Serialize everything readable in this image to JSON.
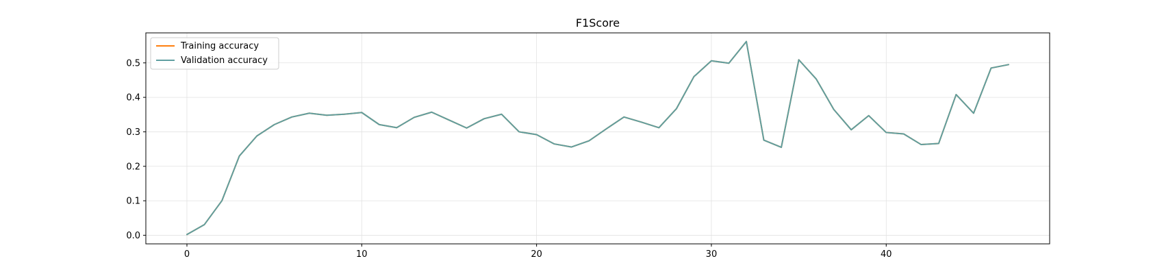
{
  "chart_data": {
    "type": "line",
    "title": "F1Score",
    "xlabel": "",
    "ylabel": "",
    "xlim": [
      -2.35,
      49.35
    ],
    "ylim": [
      -0.025,
      0.587
    ],
    "x_ticks": [
      0,
      10,
      20,
      30,
      40
    ],
    "y_ticks": [
      0.0,
      0.1,
      0.2,
      0.3,
      0.4,
      0.5
    ],
    "y_tick_labels": [
      "0.0",
      "0.1",
      "0.2",
      "0.3",
      "0.4",
      "0.5"
    ],
    "grid": true,
    "legend_placement": "upper-left",
    "x": [
      0,
      1,
      2,
      3,
      4,
      5,
      6,
      7,
      8,
      9,
      10,
      11,
      12,
      13,
      14,
      15,
      16,
      17,
      18,
      19,
      20,
      21,
      22,
      23,
      24,
      25,
      26,
      27,
      28,
      29,
      30,
      31,
      32,
      33,
      34,
      35,
      36,
      37,
      38,
      39,
      40,
      41,
      42,
      43,
      44,
      45,
      46,
      47
    ],
    "series": [
      {
        "name": "Training accuracy",
        "color": "#ff7f0e",
        "values": [
          0.002,
          0.031,
          0.1,
          0.23,
          0.288,
          0.321,
          0.343,
          0.354,
          0.348,
          0.351,
          0.356,
          0.321,
          0.312,
          0.342,
          0.357,
          0.334,
          0.311,
          0.338,
          0.351,
          0.3,
          0.292,
          0.265,
          0.256,
          0.274,
          0.309,
          0.343,
          0.328,
          0.312,
          0.367,
          0.46,
          0.506,
          0.499,
          0.562,
          0.276,
          0.255,
          0.509,
          0.453,
          0.365,
          0.306,
          0.347,
          0.298,
          0.294,
          0.263,
          0.266,
          0.408,
          0.354,
          0.485,
          0.495
        ]
      },
      {
        "name": "Validation accuracy",
        "color": "#5f9ea0",
        "values": [
          0.002,
          0.031,
          0.1,
          0.23,
          0.288,
          0.321,
          0.343,
          0.354,
          0.348,
          0.351,
          0.356,
          0.321,
          0.312,
          0.342,
          0.357,
          0.334,
          0.311,
          0.338,
          0.351,
          0.3,
          0.292,
          0.265,
          0.256,
          0.274,
          0.309,
          0.343,
          0.328,
          0.312,
          0.367,
          0.46,
          0.506,
          0.499,
          0.562,
          0.276,
          0.255,
          0.509,
          0.453,
          0.365,
          0.306,
          0.347,
          0.298,
          0.294,
          0.263,
          0.266,
          0.408,
          0.354,
          0.485,
          0.495
        ]
      }
    ]
  }
}
